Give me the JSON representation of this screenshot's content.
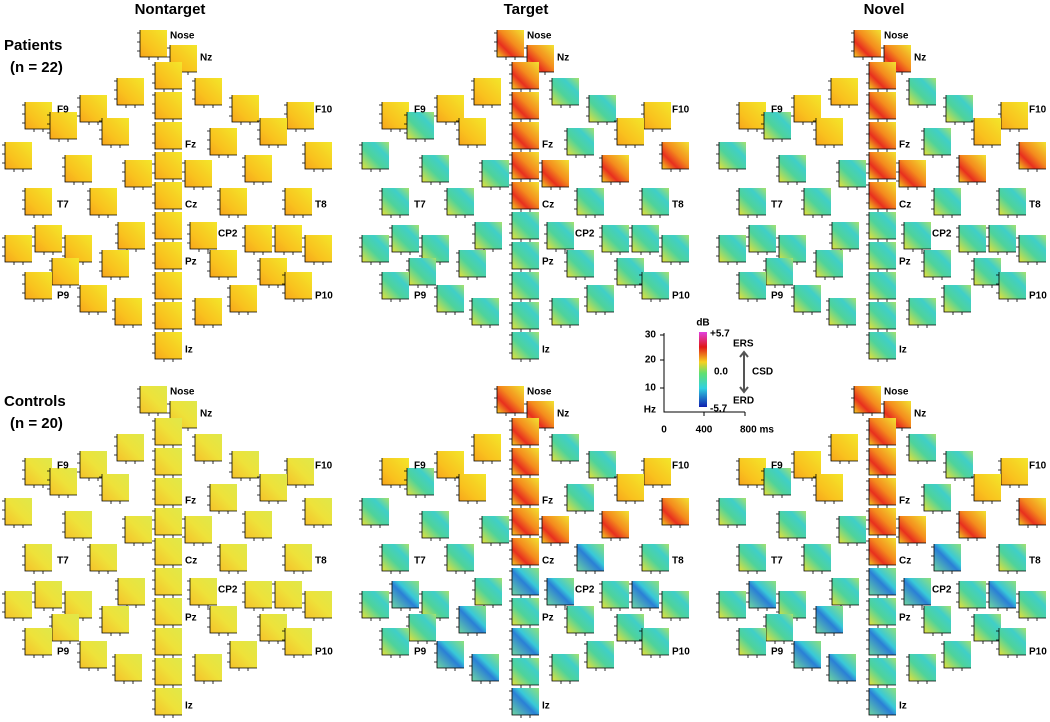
{
  "column_titles": [
    "Nontarget",
    "Target",
    "Novel"
  ],
  "groups": [
    {
      "name": "Patients",
      "n": "(n = 22)"
    },
    {
      "name": "Controls",
      "n": "(n = 20)"
    }
  ],
  "electrode_labels": [
    "Nose",
    "Nz",
    "F9",
    "F10",
    "Fz",
    "T7",
    "T8",
    "Cz",
    "CP2",
    "Pz",
    "P9",
    "P10",
    "Iz"
  ],
  "legend": {
    "y_ticks": [
      "30",
      "20",
      "10"
    ],
    "y_unit": "Hz",
    "x_ticks": [
      "0",
      "400",
      "800 ms"
    ],
    "color_unit": "dB",
    "color_max": "+5.7",
    "color_mid": "0.0",
    "color_min": "-5.7",
    "ers": "ERS",
    "csd": "CSD",
    "erd": "ERD"
  }
}
